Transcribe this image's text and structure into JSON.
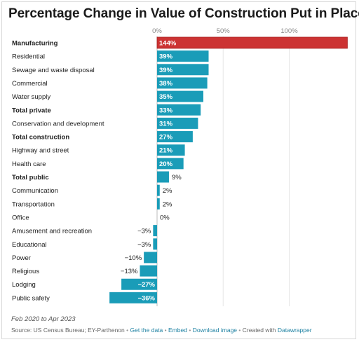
{
  "title": "Percentage Change in Value of Construction Put in Place",
  "footer": {
    "date_range": "Feb 2020 to Apr 2023",
    "source": "Source: US Census Bureau; EY-Parthenon",
    "sep1": "•",
    "get_data": "Get the data",
    "sep2": "•",
    "embed": "Embed",
    "sep3": "•",
    "download": "Download image",
    "sep4": "•",
    "created_with": "Created with",
    "datawrapper": "Datawrapper"
  },
  "colors": {
    "bar": "#1a9cb8",
    "highlight": "#cc3333",
    "axis_text": "#888888"
  },
  "chart_data": {
    "type": "bar",
    "orientation": "horizontal",
    "title": "Percentage Change in Value of Construction Put in Place",
    "xlim": [
      -45,
      145
    ],
    "x_ticks": [
      0,
      50,
      100
    ],
    "x_tick_labels": [
      "0%",
      "50%",
      "100%"
    ],
    "grid": true,
    "categories": [
      "Manufacturing",
      "Residential",
      "Sewage and waste disposal",
      "Commercial",
      "Water supply",
      "Total private",
      "Conservation and development",
      "Total construction",
      "Highway and street",
      "Health care",
      "Total public",
      "Communication",
      "Transportation",
      "Office",
      "Amusement and recreation",
      "Educational",
      "Power",
      "Religious",
      "Lodging",
      "Public safety"
    ],
    "values": [
      144,
      39,
      39,
      38,
      35,
      33,
      31,
      27,
      21,
      20,
      9,
      2,
      2,
      0,
      -3,
      -3,
      -10,
      -13,
      -27,
      -36
    ],
    "value_labels": [
      "144%",
      "39%",
      "39%",
      "38%",
      "35%",
      "33%",
      "31%",
      "27%",
      "21%",
      "20%",
      "9%",
      "2%",
      "2%",
      "0%",
      "−3%",
      "−3%",
      "−10%",
      "−13%",
      "−27%",
      "−36%"
    ],
    "bold_categories": [
      "Manufacturing",
      "Total private",
      "Total construction",
      "Total public"
    ],
    "highlight_category": "Manufacturing"
  }
}
